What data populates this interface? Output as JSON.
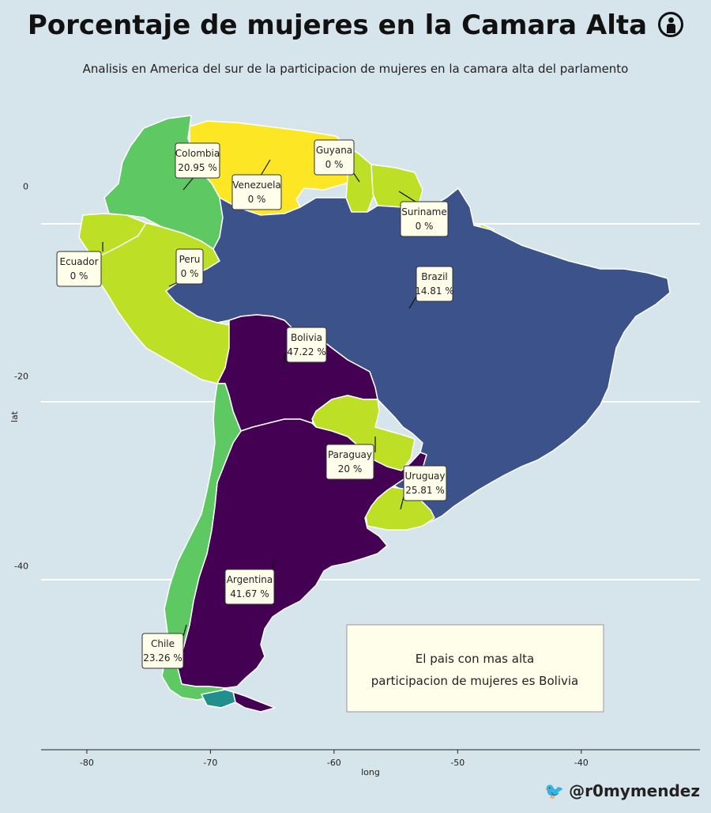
{
  "title": "Porcentaje de mujeres en la Camara Alta",
  "title_icon": "woman-icon",
  "subtitle": "Analisis en America del sur de la participacion de mujeres en la camara alta del parlamento",
  "credit": {
    "icon": "bird-icon",
    "handle": "@r0mymendez"
  },
  "note": {
    "line1": "El pais con mas alta",
    "line2": "participacion de mujeres es Bolivia"
  },
  "colors": {
    "background": "#d6e4ec",
    "scale": [
      "#440154",
      "#3b528b",
      "#21908d",
      "#5ec962",
      "#bddf26",
      "#fde725"
    ],
    "label_fill": "#fefeea"
  },
  "chart_data": {
    "type": "choropleth",
    "xlabel": "long",
    "ylabel": "lat",
    "x_ticks": [
      -80,
      -70,
      -60,
      -50,
      -40
    ],
    "y_ticks": [
      0,
      -20,
      -40
    ],
    "xlim": [
      -83.7,
      -30.4
    ],
    "ylim": [
      -59.4,
      7.7
    ],
    "grid": "horizontal",
    "countries": [
      {
        "name": "Colombia",
        "value_label": "20.95 %",
        "value": 20.95,
        "color": "#5ec962"
      },
      {
        "name": "Venezuela",
        "value_label": "0 %",
        "value": 0,
        "color": "#fde725"
      },
      {
        "name": "Guyana",
        "value_label": "0 %",
        "value": 0,
        "color": "#bddf26"
      },
      {
        "name": "Suriname",
        "value_label": "0 %",
        "value": 0,
        "color": "#bddf26"
      },
      {
        "name": "Ecuador",
        "value_label": "0 %",
        "value": 0,
        "color": "#bddf26"
      },
      {
        "name": "Peru",
        "value_label": "0 %",
        "value": 0,
        "color": "#bddf26"
      },
      {
        "name": "Brazil",
        "value_label": "14.81 %",
        "value": 14.81,
        "color": "#3b528b"
      },
      {
        "name": "Bolivia",
        "value_label": "47.22 %",
        "value": 47.22,
        "color": "#440154"
      },
      {
        "name": "Paraguay",
        "value_label": "20 %",
        "value": 20,
        "color": "#bddf26"
      },
      {
        "name": "Uruguay",
        "value_label": "25.81 %",
        "value": 25.81,
        "color": "#bddf26"
      },
      {
        "name": "Argentina",
        "value_label": "41.67 %",
        "value": 41.67,
        "color": "#440154"
      },
      {
        "name": "Chile",
        "value_label": "23.26 %",
        "value": 23.26,
        "color": "#5ec962"
      }
    ]
  }
}
